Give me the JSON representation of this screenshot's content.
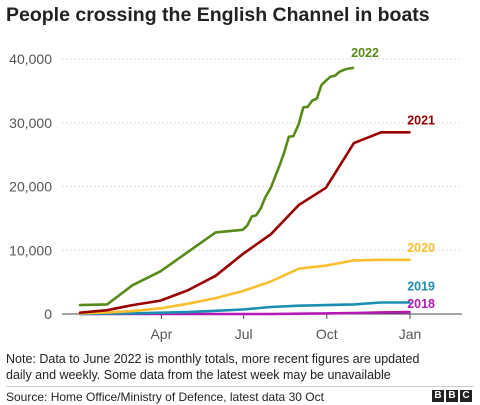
{
  "title": "People crossing the English Channel in boats",
  "note": "Note: Data to June 2022 is monthly totals, more recent figures are updated daily and weekly. Some data from the latest week may be unavailable",
  "source": "Source: Home Office/Ministry of Defence, latest data 30 Oct",
  "logo": [
    "B",
    "B",
    "C"
  ],
  "chart_data": {
    "type": "line",
    "title": "People crossing the English Channel in boats",
    "xlabel": "",
    "ylabel": "",
    "x_ticks": [
      "Apr",
      "Jul",
      "Oct",
      "Jan"
    ],
    "y_ticks": [
      "0",
      "10,000",
      "20,000",
      "30,000",
      "40,000"
    ],
    "ylim": [
      0,
      40000
    ],
    "grid": "horizontal",
    "series": [
      {
        "name": "2022",
        "color": "#588a1a",
        "x": [
          "Jan 1",
          "Jan 31",
          "Feb 28",
          "Mar 31",
          "Apr 30",
          "May 31",
          "Jun 30",
          "Jul 5",
          "Jul 10",
          "Jul 15",
          "Jul 20",
          "Jul 25",
          "Jul 31",
          "Aug 5",
          "Aug 10",
          "Aug 15",
          "Aug 20",
          "Aug 25",
          "Aug 31",
          "Sep 5",
          "Sep 10",
          "Sep 15",
          "Sep 20",
          "Sep 25",
          "Sep 30",
          "Oct 5",
          "Oct 10",
          "Oct 15",
          "Oct 20",
          "Oct 25",
          "Oct 30"
        ],
        "values": [
          1400,
          1500,
          4500,
          6700,
          9700,
          12800,
          13200,
          13900,
          15300,
          15500,
          16600,
          18300,
          19800,
          21600,
          23400,
          25400,
          27800,
          27900,
          29800,
          32400,
          32500,
          33500,
          33800,
          35900,
          36600,
          37200,
          37400,
          38000,
          38300,
          38500,
          38600
        ]
      },
      {
        "name": "2021",
        "color": "#990000",
        "x": [
          "Jan 1",
          "Jan 31",
          "Feb 28",
          "Mar 31",
          "Apr 30",
          "May 31",
          "Jun 30",
          "Jul 31",
          "Aug 31",
          "Sep 30",
          "Oct 31",
          "Nov 30",
          "Dec 31"
        ],
        "values": [
          200,
          600,
          1400,
          2100,
          3700,
          6000,
          9400,
          12500,
          17100,
          19800,
          26800,
          28500,
          28500
        ]
      },
      {
        "name": "2020",
        "color": "#fbbe2c",
        "x": [
          "Jan 1",
          "Jan 31",
          "Feb 28",
          "Mar 31",
          "Apr 30",
          "May 31",
          "Jun 30",
          "Jul 31",
          "Aug 31",
          "Sep 30",
          "Oct 31",
          "Nov 30",
          "Dec 31"
        ],
        "values": [
          100,
          250,
          450,
          900,
          1600,
          2500,
          3600,
          5100,
          7100,
          7600,
          8400,
          8500,
          8500
        ]
      },
      {
        "name": "2019",
        "color": "#1a8fb2",
        "x": [
          "Jan 1",
          "Jan 31",
          "Feb 28",
          "Mar 31",
          "Apr 30",
          "May 31",
          "Jun 30",
          "Jul 31",
          "Aug 31",
          "Sep 30",
          "Oct 31",
          "Nov 30",
          "Dec 31"
        ],
        "values": [
          0,
          50,
          100,
          200,
          300,
          500,
          700,
          1100,
          1300,
          1400,
          1500,
          1800,
          1800
        ]
      },
      {
        "name": "2018",
        "color": "#b419b4",
        "x": [
          "Jan 1",
          "Jan 31",
          "Feb 28",
          "Mar 31",
          "Apr 30",
          "May 31",
          "Jun 30",
          "Jul 31",
          "Aug 31",
          "Sep 30",
          "Oct 31",
          "Nov 30",
          "Dec 31"
        ],
        "values": [
          0,
          0,
          0,
          0,
          0,
          0,
          0,
          0,
          50,
          100,
          150,
          250,
          300
        ]
      }
    ]
  }
}
